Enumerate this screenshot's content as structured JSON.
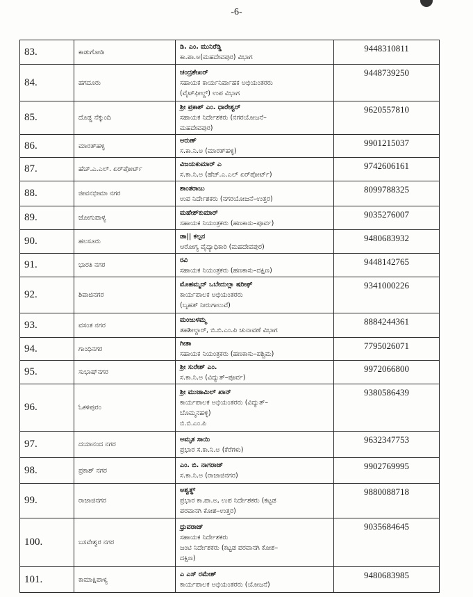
{
  "page_number": "-6-",
  "rows": [
    {
      "no": "83.",
      "area": "ಕಾಡುಗೋಡಿ",
      "officer": [
        "ಡಿ. ಎಂ. ಮುನಿರೆಡ್ಡಿ",
        "ಕಾ.ಪಾ.ಅ(ಮಹದೇವಪುರ) ವಿಭಾಗ"
      ],
      "phone": "9448310811"
    },
    {
      "no": "84.",
      "area": "ಹಗದೂರು",
      "officer": [
        "ಚಂದ್ರಶೇಖರ್",
        "ಸಹಾಯಕ ಕಾರ್ಯನಿರ್ವಾಹಕ ಅಭಿಯಂತರರು",
        "(ವೈಟ್‌ಫೀಲ್ಡ್) ಉಪ ವಿಭಾಗ"
      ],
      "phone": "9448739250"
    },
    {
      "no": "85.",
      "area": "ದೊಡ್ಡ ನೆಕ್ಕುಂದಿ",
      "officer": [
        "ಶ್ರೀ ಪ್ರಕಾಶ್ ಎಂ. ಧಾರೇಶ್ವರ್",
        "ಸಹಾಯಕ ನಿರ್ದೇಶಕರು (ನಗರಯೋಜನೆ–",
        "ಮಹದೇವಪುರ)"
      ],
      "phone": "9620557810"
    },
    {
      "no": "86.",
      "area": "ಮಾರತ್‌ಹಳ್ಳಿ",
      "officer": [
        "ಅರುಣ್",
        "ಸ.ಕಾ.ನಿ.ಅ (ಮಾರತ್‌ಹಳ್ಳಿ)"
      ],
      "phone": "9901215037"
    },
    {
      "no": "87.",
      "area": "ಹೆಚ್.ಎ.ಎಲ್. ಏರ್‌ಪೋರ್ಟ್",
      "officer": [
        "ವಿಜಯಕುಮಾರ್ ಎ",
        "ಸ.ಕಾ.ನಿ.ಅ (ಹೆಚ್.ಎ.ಎಲ್ ಏರ್‌ಪೋರ್ಟ್)"
      ],
      "phone": "9742606161"
    },
    {
      "no": "88.",
      "area": "ಜೀವನಭೀಮಾ ನಗರ",
      "officer": [
        "ಶಾಂತರಾಜು",
        "ಉಪ ನಿರ್ದೇಶಕರು (ನಗರಯೋಜನೆ–ಉತ್ತರ)"
      ],
      "phone": "8099788325"
    },
    {
      "no": "89.",
      "area": "ಜೋಗುಪಾಳ್ಯ",
      "officer": [
        "ಮಹೇಶ್‌ಕುಮಾರ್",
        "ಸಹಾಯಕ ನಿಯಂತ್ರಕರು (ಹಣಕಾಸು–ಪೂರ್ವ)"
      ],
      "phone": "9035276007"
    },
    {
      "no": "90.",
      "area": "ಹಲಸೂರು",
      "officer": [
        "ಡಾ|| ಕಲ್ಪನ",
        "ಆರೋಗ್ಯ ವೈದ್ಯಾಧಿಕಾರಿ (ಮಹದೇವಪುರ)"
      ],
      "phone": "9480683932"
    },
    {
      "no": "91.",
      "area": "ಭಾರತಿ ನಗರ",
      "officer": [
        "ರವಿ",
        "ಸಹಾಯಕ ನಿಯಂತ್ರಕರು (ಹಣಕಾಸು–ದಕ್ಷಿಣ)"
      ],
      "phone": "9448142765"
    },
    {
      "no": "92.",
      "area": "ಶಿವಾಜಿನಗರ",
      "officer": [
        "ಮೊಹಮ್ಮದ್ ಒಬೇದುಲ್ಲಾ ಷರೀಫ್",
        "ಕಾರ್ಯಪಾಲಕ ಅಭಿಯಂತರರು",
        "(ಬೃಹತ್ ನೀರುಗಾಲುವೆ)"
      ],
      "phone": "9341000226"
    },
    {
      "no": "93.",
      "area": "ವಸಂತ ನಗರ",
      "officer": [
        "ಮಂಜುಳಮ್ಮ",
        "ತಹಶೀಲ್ದಾರ್, ಬಿ.ಬಿ.ಎಂ.ಪಿ ಚುನಾವಣೆ ವಿಭಾಗ"
      ],
      "phone": "8884244361"
    },
    {
      "no": "94.",
      "area": "ಗಾಂಧಿನಗರ",
      "officer": [
        "ಗೀತಾ",
        "ಸಹಾಯಕ ನಿಯಂತ್ರಕರು (ಹಣಕಾಸು–ಪಶ್ಚಿಮ)"
      ],
      "phone": "7795026071"
    },
    {
      "no": "95.",
      "area": "ಸುಭಾಷ್‌ನಗರ",
      "officer": [
        "ಶ್ರೀ ಸುರೇಶ್ ಎಂ.",
        "ಸ.ಕಾ.ನಿ.ಅ (ವಿದ್ಯುತ್–ಪೂರ್ವ)"
      ],
      "phone": "9972066800"
    },
    {
      "no": "96.",
      "area": "ಓಕಳಿಪುರಂ",
      "officer": [
        "ಶ್ರೀ ಮುಜಾಮಿಲ್ ಖಾನ್",
        "ಕಾರ್ಯಪಾಲಕ ಅಭಿಯಂತರರು (ವಿದ್ಯುತ್–",
        "ಬೊಮ್ಮನಹಳ್ಳಿ)",
        "ಬಿ.ಬಿ.ಎಂ.ಪಿ"
      ],
      "phone": "9380586439"
    },
    {
      "no": "97.",
      "area": "ದಯಾನಂದ ನಗರ",
      "officer": [
        "ಅಮೃತ ಸಾಯಿ",
        "ಪ್ರಭಾರ ಸ.ಕಾ.ನಿ.ಅ (ಕೆರೆಗಳು)"
      ],
      "phone": "9632347753"
    },
    {
      "no": "98.",
      "area": "ಪ್ರಕಾಶ್ ನಗರ",
      "officer": [
        "ಎಂ. ಬಿ. ನಾಗರಾಜ್",
        "ಸ.ಕಾ.ನಿ.ಅ (ರಾಜಾಜಿನಗರ)"
      ],
      "phone": "9902769995"
    },
    {
      "no": "99.",
      "area": "ರಾಜಾಜಿನಗರ",
      "officer": [
        "ಅಶ್ವತ್ಥ್",
        "ಪ್ರಭಾರ ಕಾ.ಪಾ.ಅ, ಉಪ ನಿರ್ದೇಶಕರು (ಕಟ್ಟಡ",
        "ಪರವಾನಗಿ ಕೋಶ–ಉತ್ತರ)"
      ],
      "phone": "9880088718"
    },
    {
      "no": "100.",
      "area": "ಬಸವೇಶ್ವರ ನಗರ",
      "officer": [
        "ಧ್ರುವರಾಜ್",
        "ಸಹಾಯಕ ನಿರ್ದೇಶಕರು",
        "ಜಂಟಿ ನಿರ್ದೇಶಕರು (ಕಟ್ಟಡ ಪರವಾನಗಿ ಕೋಶ–",
        "ದಕ್ಷಿಣ)"
      ],
      "phone": "9035684645"
    },
    {
      "no": "101.",
      "area": "ಕಾಮಾಕ್ಷಿಪಾಳ್ಯ",
      "officer": [
        "ಎ ಎಸ್ ರಮೇಶ್",
        "ಕಾರ್ಯಪಾಲಕ ಅಭಿಯಂತರರು (ಯೋಜನೆ)"
      ],
      "phone": "9480683985"
    }
  ]
}
